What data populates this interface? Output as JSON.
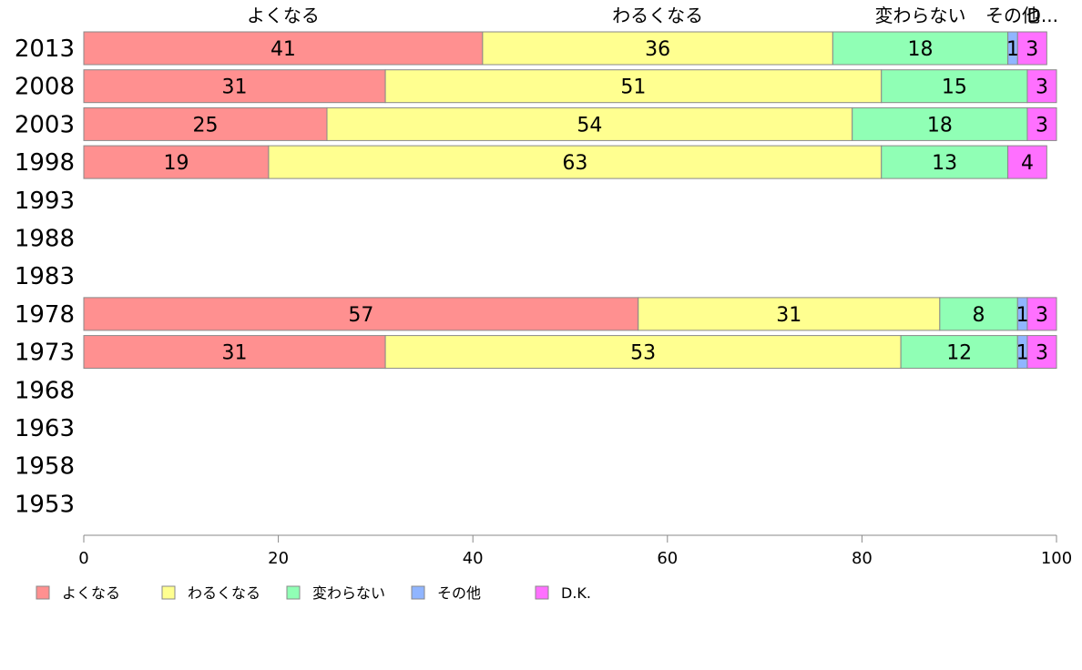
{
  "chart_data": {
    "type": "bar",
    "orientation": "horizontal",
    "stacked": true,
    "categories": [
      "2013",
      "2008",
      "2003",
      "1998",
      "1993",
      "1988",
      "1983",
      "1978",
      "1973",
      "1968",
      "1963",
      "1958",
      "1953"
    ],
    "series": [
      {
        "name": "よくなる",
        "color": "#ff9090",
        "values": [
          41,
          31,
          25,
          19,
          null,
          null,
          null,
          57,
          31,
          null,
          null,
          null,
          null
        ]
      },
      {
        "name": "わるくなる",
        "color": "#ffff90",
        "values": [
          36,
          51,
          54,
          63,
          null,
          null,
          null,
          31,
          53,
          null,
          null,
          null,
          null
        ]
      },
      {
        "name": "変わらない",
        "color": "#90ffb5",
        "values": [
          18,
          15,
          18,
          13,
          null,
          null,
          null,
          8,
          12,
          null,
          null,
          null,
          null
        ]
      },
      {
        "name": "その他",
        "color": "#90b5ff",
        "values": [
          1,
          0,
          0,
          0,
          null,
          null,
          null,
          1,
          1,
          null,
          null,
          null,
          null
        ]
      },
      {
        "name": "D.K.",
        "color": "#ff70ff",
        "values": [
          3,
          3,
          3,
          4,
          null,
          null,
          null,
          3,
          3,
          null,
          null,
          null,
          null
        ]
      }
    ],
    "data_labels": [
      [
        "41",
        "36",
        "18",
        "1",
        "3"
      ],
      [
        "31",
        "51",
        "15",
        "",
        "3"
      ],
      [
        "25",
        "54",
        "18",
        "",
        "3"
      ],
      [
        "19",
        "63",
        "13",
        "",
        "4"
      ],
      null,
      null,
      null,
      [
        "57",
        "31",
        "8",
        "1",
        "3"
      ],
      [
        "31",
        "53",
        "12",
        "1",
        "3"
      ],
      null,
      null,
      null,
      null
    ],
    "top_labels": [
      "よくなる",
      "わるくなる",
      "変わらない",
      "その他",
      "D..."
    ],
    "xlim": [
      0,
      100
    ],
    "xticks": [
      "0",
      "20",
      "40",
      "60",
      "80",
      "100"
    ],
    "grid": false,
    "legend_position": "bottom-left"
  }
}
